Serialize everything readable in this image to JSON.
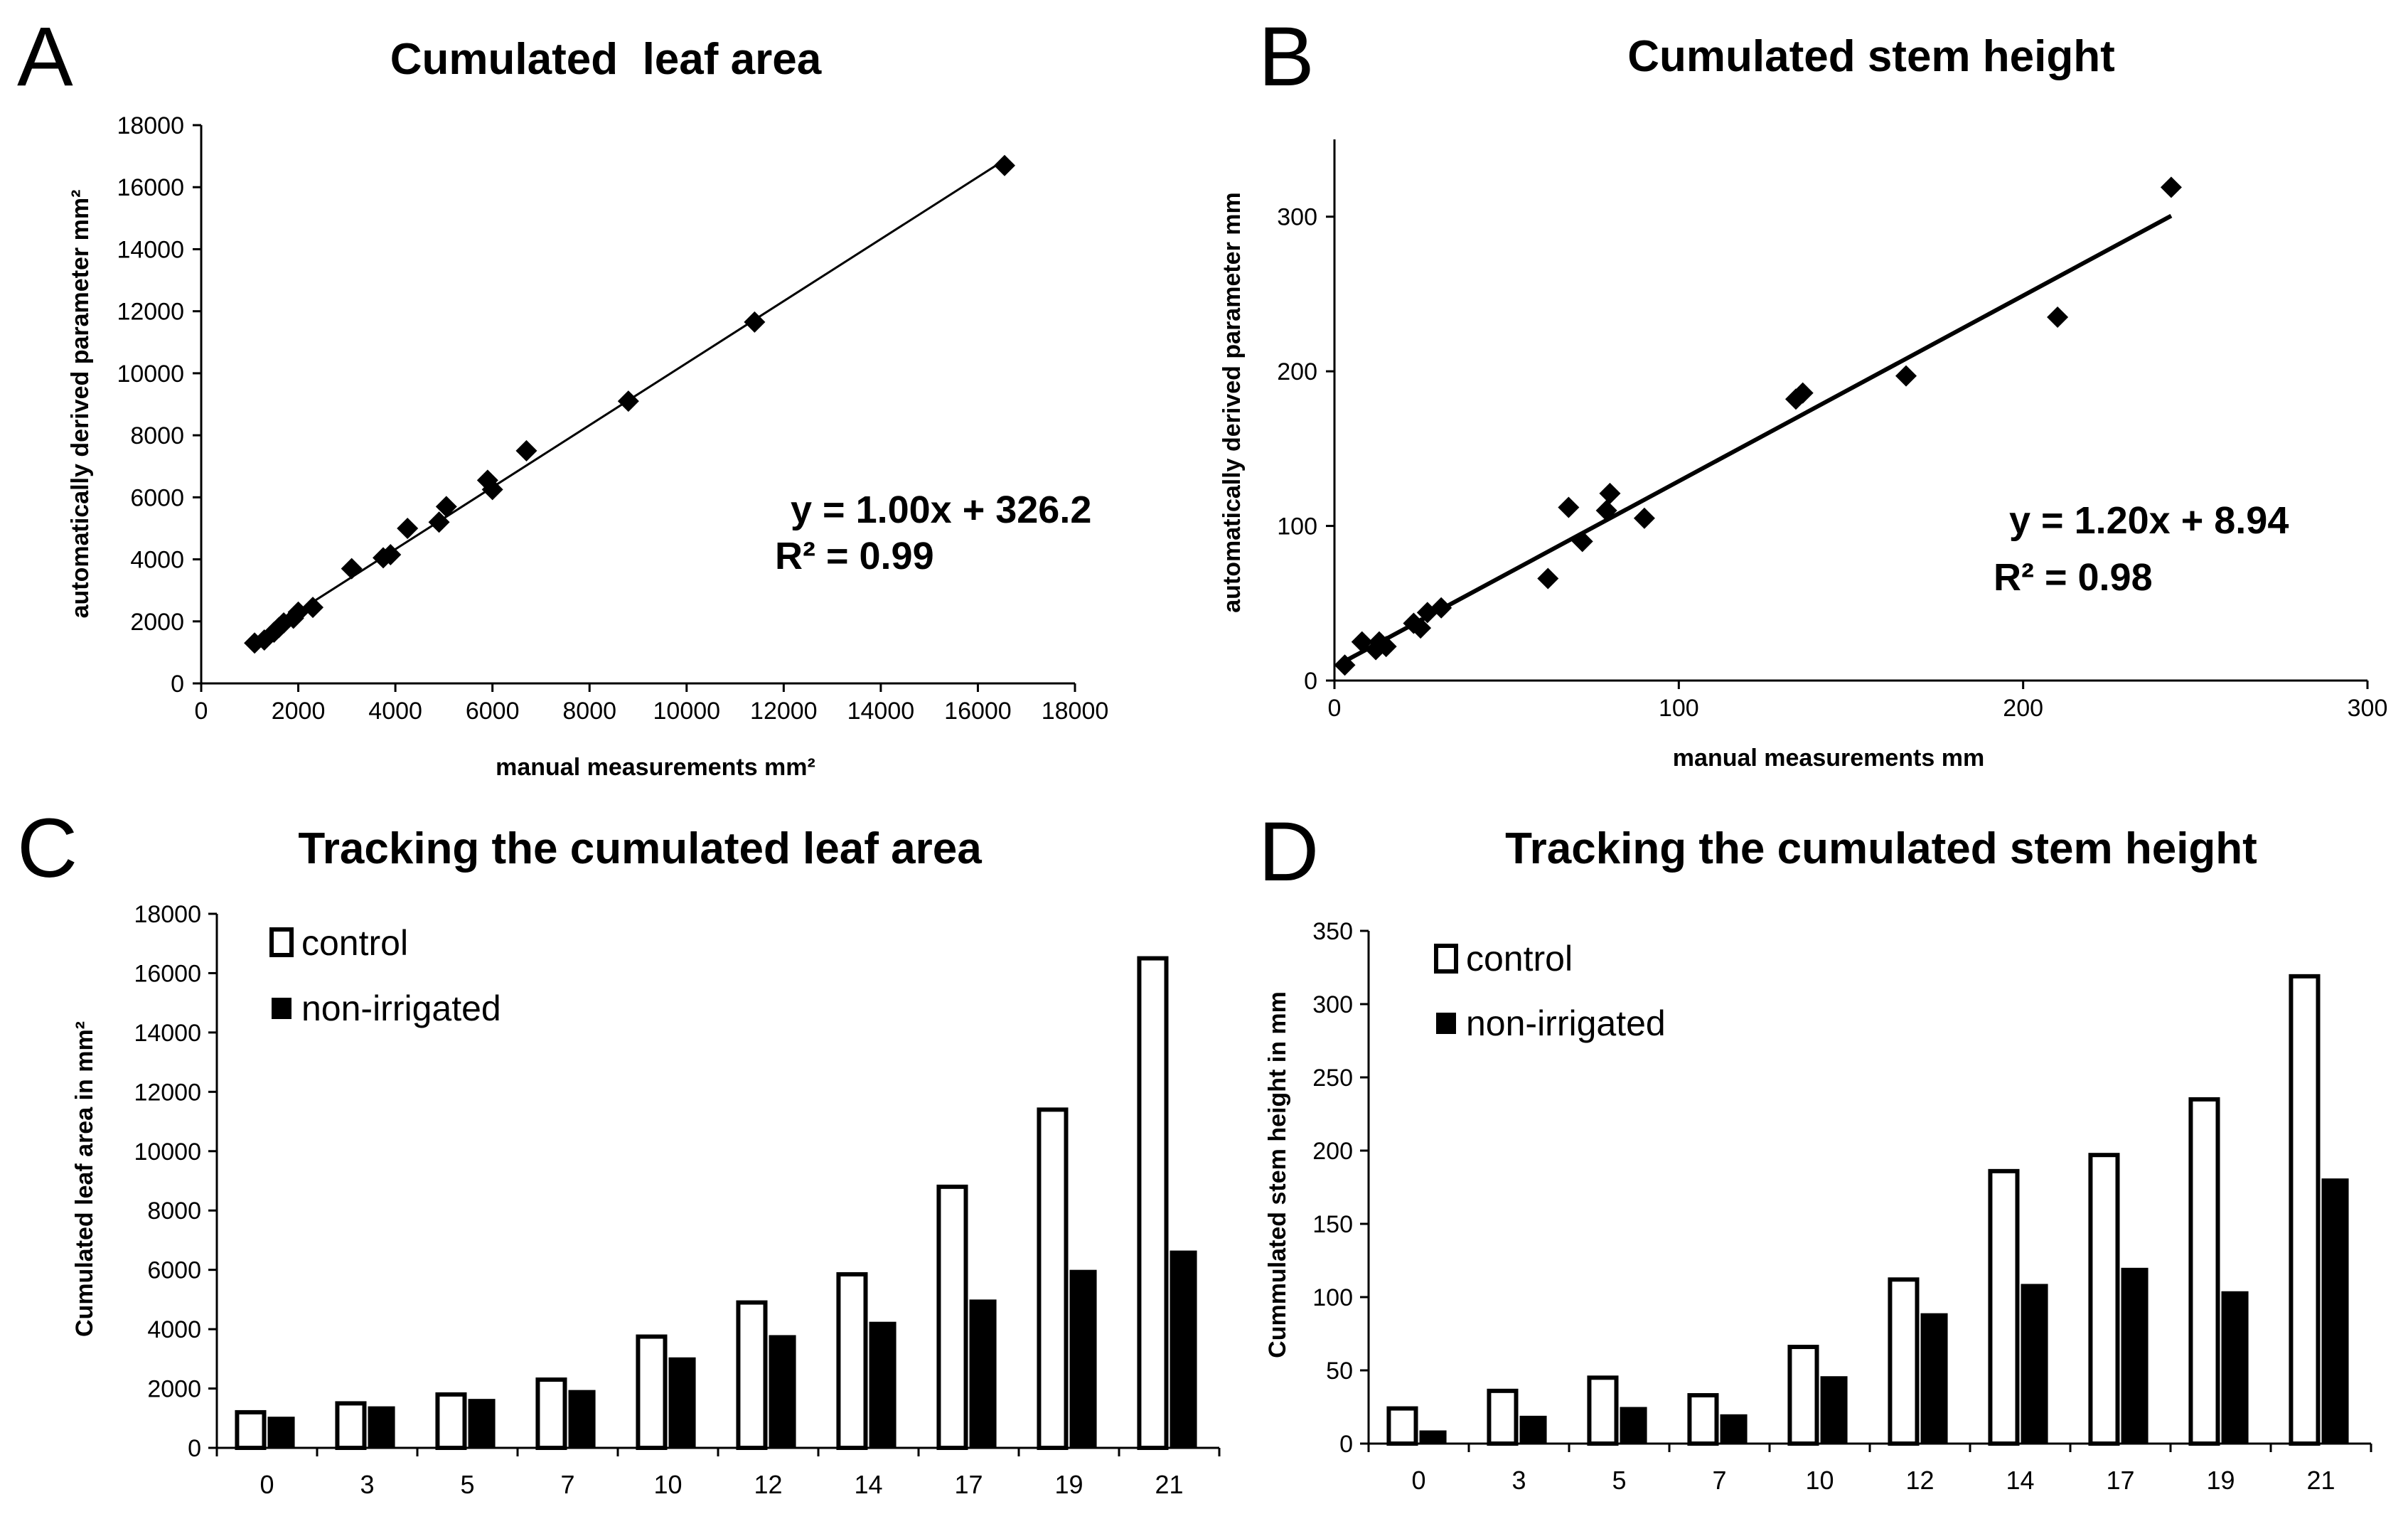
{
  "figure": {
    "background": "#ffffff",
    "marker_color": "#000000",
    "control_fill": "#ffffff",
    "non_irrigated_fill": "#000000"
  },
  "chart_data": [
    {
      "panel": "A",
      "type": "scatter",
      "title": "Cumulated  leaf area",
      "xlabel": "manual measurements mm²",
      "ylabel": "automatically derived parameter mm²",
      "xlim": [
        0,
        18000
      ],
      "ylim": [
        0,
        18000
      ],
      "xticks": [
        0,
        2000,
        4000,
        6000,
        8000,
        10000,
        12000,
        14000,
        16000,
        18000
      ],
      "yticks": [
        0,
        2000,
        4000,
        6000,
        8000,
        10000,
        12000,
        14000,
        16000,
        18000
      ],
      "marker": "diamond",
      "points": [
        [
          1100,
          1300
        ],
        [
          1300,
          1400
        ],
        [
          1500,
          1650
        ],
        [
          1600,
          1800
        ],
        [
          1700,
          1950
        ],
        [
          1900,
          2100
        ],
        [
          2000,
          2300
        ],
        [
          2300,
          2450
        ],
        [
          3100,
          3700
        ],
        [
          3750,
          4050
        ],
        [
          3900,
          4150
        ],
        [
          4250,
          5000
        ],
        [
          4900,
          5200
        ],
        [
          5050,
          5700
        ],
        [
          5900,
          6550
        ],
        [
          6000,
          6250
        ],
        [
          6700,
          7500
        ],
        [
          8800,
          9100
        ],
        [
          11400,
          11650
        ],
        [
          16550,
          16700
        ]
      ],
      "trendline": {
        "slope": 1.0,
        "intercept": 326.2,
        "x_range": [
          1000,
          16550
        ]
      },
      "equation": "y = 1.00x + 326.2",
      "r2": "R² = 0.99"
    },
    {
      "panel": "B",
      "type": "scatter",
      "title": "Cumulated stem height",
      "xlabel": "manual measurements mm",
      "ylabel": "automatically derived parameter mm",
      "xlim": [
        0,
        300
      ],
      "ylim": [
        0,
        350
      ],
      "xticks": [
        0,
        100,
        200,
        300
      ],
      "yticks": [
        0,
        100,
        200,
        300
      ],
      "marker": "diamond",
      "points": [
        [
          3,
          10
        ],
        [
          8,
          25
        ],
        [
          12,
          20
        ],
        [
          13,
          25
        ],
        [
          15,
          22
        ],
        [
          23,
          37
        ],
        [
          25,
          34
        ],
        [
          27,
          44
        ],
        [
          31,
          47
        ],
        [
          62,
          66
        ],
        [
          68,
          112
        ],
        [
          72,
          90
        ],
        [
          79,
          110
        ],
        [
          80,
          121
        ],
        [
          90,
          105
        ],
        [
          134,
          182
        ],
        [
          136,
          186
        ],
        [
          166,
          197
        ],
        [
          210,
          235
        ],
        [
          243,
          319
        ]
      ],
      "trendline": {
        "slope": 1.2,
        "intercept": 8.94,
        "x_range": [
          2,
          243
        ]
      },
      "equation": "y = 1.20x + 8.94",
      "r2": "R² = 0.98"
    },
    {
      "panel": "C",
      "type": "bar",
      "title": "Tracking the cumulated leaf area",
      "xlabel": "",
      "ylabel": "Cumulated leaf area in mm²",
      "ylim": [
        0,
        18000
      ],
      "yticks": [
        0,
        2000,
        4000,
        6000,
        8000,
        10000,
        12000,
        14000,
        16000,
        18000
      ],
      "categories": [
        "0",
        "3",
        "5",
        "7",
        "10",
        "12",
        "14",
        "17",
        "19",
        "21"
      ],
      "series": [
        {
          "name": "control",
          "values": [
            1200,
            1500,
            1800,
            2300,
            3750,
            4900,
            5850,
            8800,
            11400,
            16500
          ]
        },
        {
          "name": "non-irrigated",
          "values": [
            1050,
            1400,
            1650,
            1950,
            3050,
            3800,
            4250,
            5000,
            6000,
            6650
          ]
        }
      ],
      "legend_position": "top-left"
    },
    {
      "panel": "D",
      "type": "bar",
      "title": "Tracking the cumulated stem height",
      "xlabel": "",
      "ylabel": "Cummulated stem height in mm",
      "ylim": [
        0,
        350
      ],
      "yticks": [
        0,
        50,
        100,
        150,
        200,
        250,
        300,
        350
      ],
      "categories": [
        "0",
        "3",
        "5",
        "7",
        "10",
        "12",
        "14",
        "17",
        "19",
        "21"
      ],
      "series": [
        {
          "name": "control",
          "values": [
            24,
            36,
            45,
            33,
            66,
            112,
            186,
            197,
            235,
            319
          ]
        },
        {
          "name": "non-irrigated",
          "values": [
            9,
            19,
            25,
            20,
            46,
            89,
            109,
            120,
            104,
            181
          ]
        }
      ],
      "legend_position": "top-left"
    }
  ]
}
